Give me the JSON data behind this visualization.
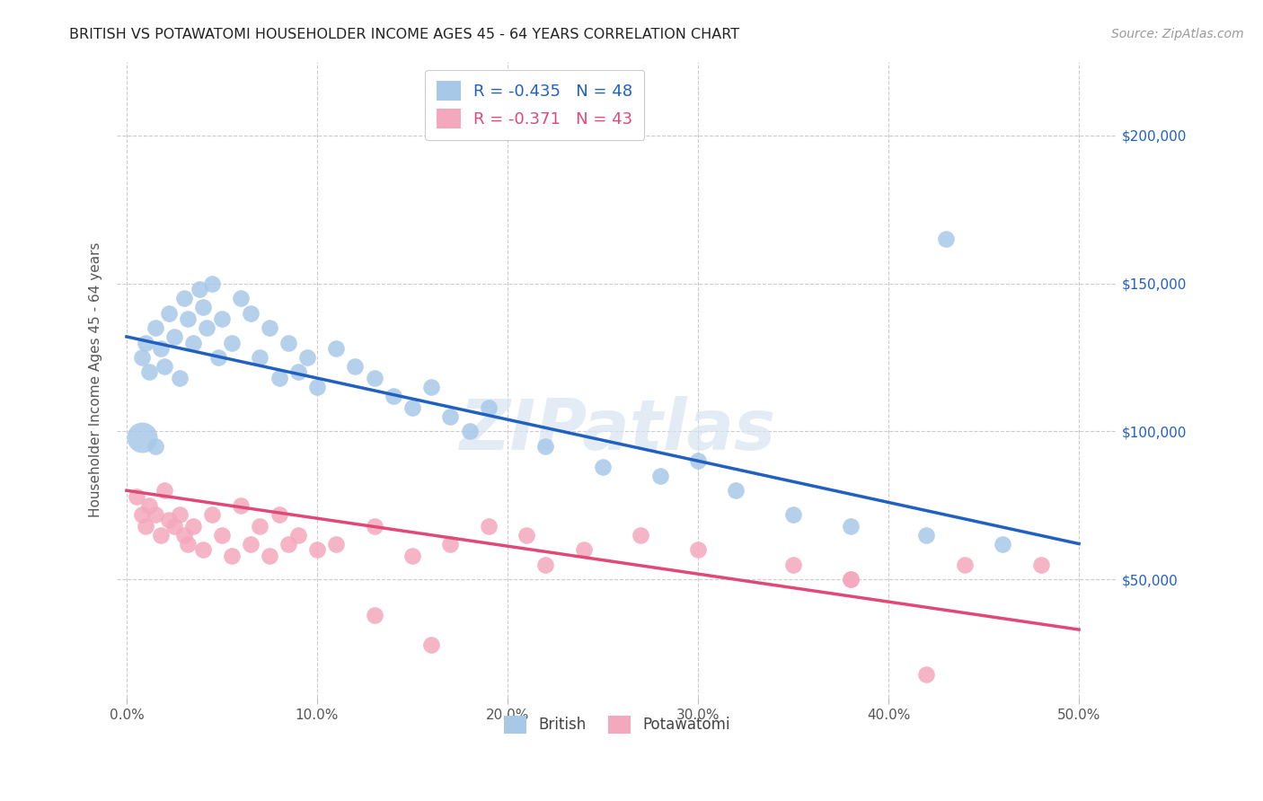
{
  "title": "BRITISH VS POTAWATOMI HOUSEHOLDER INCOME AGES 45 - 64 YEARS CORRELATION CHART",
  "source": "Source: ZipAtlas.com",
  "xlabel_ticks": [
    "0.0%",
    "10.0%",
    "20.0%",
    "30.0%",
    "40.0%",
    "50.0%"
  ],
  "xlabel_vals": [
    0.0,
    0.1,
    0.2,
    0.3,
    0.4,
    0.5
  ],
  "ylabel": "Householder Income Ages 45 - 64 years",
  "ylabel_ticks": [
    "$50,000",
    "$100,000",
    "$150,000",
    "$200,000"
  ],
  "ylabel_vals": [
    50000,
    100000,
    150000,
    200000
  ],
  "xlim": [
    -0.005,
    0.52
  ],
  "ylim": [
    10000,
    225000
  ],
  "british_R": -0.435,
  "british_N": 48,
  "potawatomi_R": -0.371,
  "potawatomi_N": 43,
  "british_color": "#a8c8e8",
  "potawatomi_color": "#f4a8be",
  "british_line_color": "#2060c0",
  "potawatomi_line_color": "#e04878",
  "legend_text_color": "#2060c0",
  "watermark_color": "#d8e4f0",
  "british_x": [
    0.008,
    0.01,
    0.012,
    0.015,
    0.018,
    0.02,
    0.022,
    0.025,
    0.028,
    0.03,
    0.032,
    0.035,
    0.038,
    0.04,
    0.042,
    0.045,
    0.048,
    0.05,
    0.055,
    0.06,
    0.065,
    0.07,
    0.075,
    0.08,
    0.085,
    0.09,
    0.095,
    0.1,
    0.11,
    0.12,
    0.13,
    0.14,
    0.15,
    0.16,
    0.17,
    0.18,
    0.19,
    0.22,
    0.25,
    0.28,
    0.3,
    0.32,
    0.35,
    0.38,
    0.42,
    0.46,
    0.43,
    0.015
  ],
  "british_y": [
    125000,
    130000,
    120000,
    135000,
    128000,
    122000,
    140000,
    132000,
    118000,
    145000,
    138000,
    130000,
    148000,
    142000,
    135000,
    150000,
    125000,
    138000,
    130000,
    145000,
    140000,
    125000,
    135000,
    118000,
    130000,
    120000,
    125000,
    115000,
    128000,
    122000,
    118000,
    112000,
    108000,
    115000,
    105000,
    100000,
    108000,
    95000,
    88000,
    85000,
    90000,
    80000,
    72000,
    68000,
    65000,
    62000,
    165000,
    95000
  ],
  "british_big_x": [
    0.008
  ],
  "british_big_y": [
    98000
  ],
  "potawatomi_x": [
    0.005,
    0.008,
    0.01,
    0.012,
    0.015,
    0.018,
    0.02,
    0.022,
    0.025,
    0.028,
    0.03,
    0.032,
    0.035,
    0.04,
    0.045,
    0.05,
    0.055,
    0.06,
    0.065,
    0.07,
    0.075,
    0.08,
    0.085,
    0.09,
    0.1,
    0.11,
    0.13,
    0.15,
    0.17,
    0.19,
    0.21,
    0.24,
    0.27,
    0.3,
    0.35,
    0.38,
    0.42,
    0.44,
    0.48,
    0.38,
    0.22,
    0.13,
    0.16
  ],
  "potawatomi_y": [
    78000,
    72000,
    68000,
    75000,
    72000,
    65000,
    80000,
    70000,
    68000,
    72000,
    65000,
    62000,
    68000,
    60000,
    72000,
    65000,
    58000,
    75000,
    62000,
    68000,
    58000,
    72000,
    62000,
    65000,
    60000,
    62000,
    68000,
    58000,
    62000,
    68000,
    65000,
    60000,
    65000,
    60000,
    55000,
    50000,
    18000,
    55000,
    55000,
    50000,
    55000,
    38000,
    28000
  ],
  "british_line_x": [
    0.0,
    0.5
  ],
  "british_line_y": [
    132000,
    62000
  ],
  "potawatomi_line_x": [
    0.0,
    0.5
  ],
  "potawatomi_line_y": [
    80000,
    33000
  ]
}
